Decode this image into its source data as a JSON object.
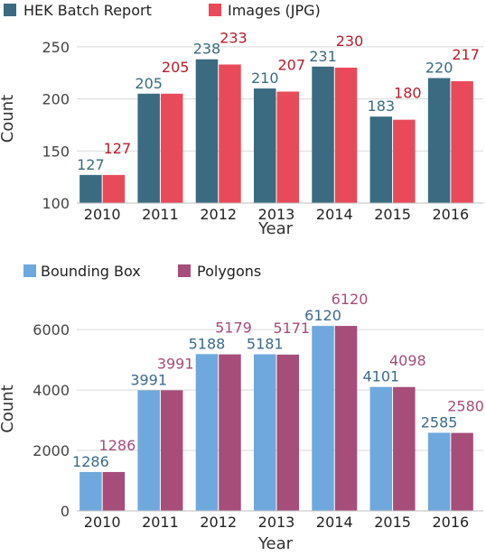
{
  "chart_data": [
    {
      "type": "bar",
      "categories": [
        "2010",
        "2011",
        "2012",
        "2013",
        "2014",
        "2015",
        "2016"
      ],
      "series": [
        {
          "name": "HEK Batch Report",
          "values": [
            127,
            205,
            238,
            210,
            231,
            183,
            220
          ],
          "color": "#3a6b80",
          "label_color": "#3a6b80"
        },
        {
          "name": "Images (JPG)",
          "values": [
            127,
            205,
            233,
            207,
            230,
            180,
            217
          ],
          "color": "#e84a5a",
          "label_color": "#b71c2c"
        }
      ],
      "xlabel": "Year",
      "ylabel": "Count",
      "ylim": [
        100,
        262
      ],
      "yticks": [
        100,
        150,
        200,
        250
      ],
      "grid": true,
      "legend": "top-left"
    },
    {
      "type": "bar",
      "categories": [
        "2010",
        "2011",
        "2012",
        "2013",
        "2014",
        "2015",
        "2016"
      ],
      "series": [
        {
          "name": "Bounding Box",
          "values": [
            1286,
            3991,
            5188,
            5181,
            6120,
            4101,
            2585
          ],
          "color": "#6fa8dc",
          "label_color": "#3d6a8c"
        },
        {
          "name": "Polygons",
          "values": [
            1286,
            3991,
            5179,
            5171,
            6120,
            4098,
            2580
          ],
          "color": "#a64d79",
          "label_color": "#a64d79"
        }
      ],
      "xlabel": "Year",
      "ylabel": "Count",
      "ylim": [
        0,
        6750
      ],
      "yticks": [
        0,
        2000,
        4000,
        6000
      ],
      "grid": true,
      "legend": "top-left"
    }
  ]
}
